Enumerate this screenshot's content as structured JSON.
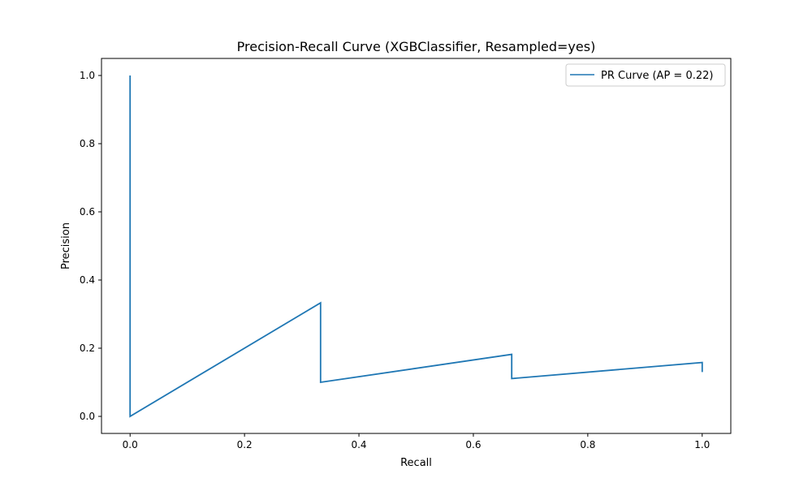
{
  "chart_data": {
    "type": "line",
    "title": "Precision-Recall Curve (XGBClassifier, Resampled=yes)",
    "xlabel": "Recall",
    "ylabel": "Precision",
    "xlim": [
      -0.05,
      1.05
    ],
    "ylim": [
      -0.05,
      1.05
    ],
    "xticks": [
      0.0,
      0.2,
      0.4,
      0.6,
      0.8,
      1.0
    ],
    "xtick_labels": [
      "0.0",
      "0.2",
      "0.4",
      "0.6",
      "0.8",
      "1.0"
    ],
    "yticks": [
      0.0,
      0.2,
      0.4,
      0.6,
      0.8,
      1.0
    ],
    "ytick_labels": [
      "0.0",
      "0.2",
      "0.4",
      "0.6",
      "0.8",
      "1.0"
    ],
    "grid": false,
    "legend": {
      "position": "upper right",
      "entries": [
        "PR Curve (AP = 0.22)"
      ]
    },
    "series": [
      {
        "name": "PR Curve (AP = 0.22)",
        "color": "#1f77b4",
        "x": [
          0.0,
          0.0,
          0.333,
          0.333,
          0.667,
          0.667,
          1.0,
          1.0
        ],
        "y": [
          1.0,
          0.0,
          0.333,
          0.1,
          0.182,
          0.111,
          0.158,
          0.13
        ]
      }
    ]
  }
}
